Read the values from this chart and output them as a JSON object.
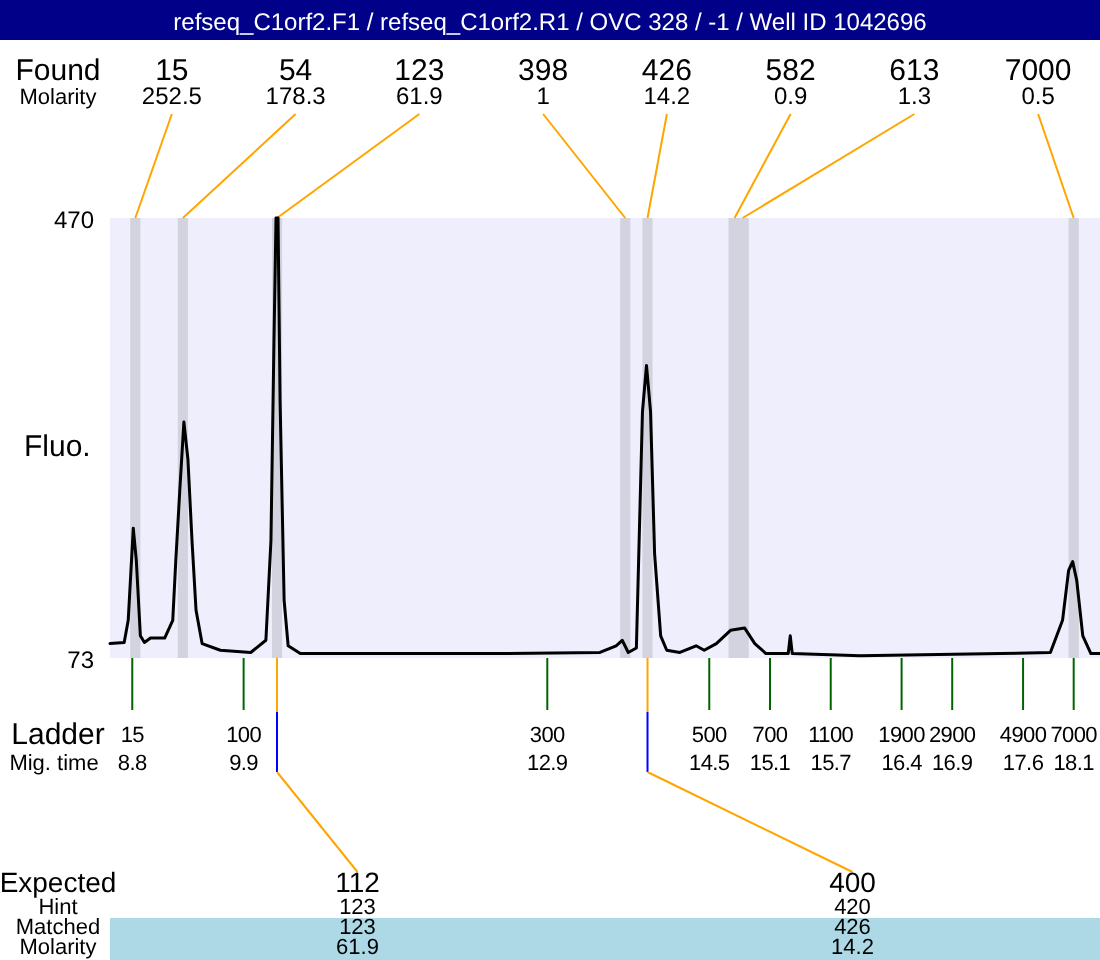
{
  "chart_data": {
    "type": "line",
    "title": "refseq_C1orf2.F1 / refseq_C1orf2.R1 / OVC 328 / -1 / Well ID 1042696",
    "ylabel": "Fluo.",
    "xlabel": "Mig. time",
    "xlim": [
      8.58,
      18.36
    ],
    "ylim": [
      73,
      470
    ],
    "yticks": [
      73,
      470
    ],
    "xticks": [
      8.8,
      9.9,
      12.9,
      14.5,
      15.1,
      15.7,
      16.4,
      16.9,
      17.6,
      18.1
    ],
    "series": [
      {
        "color": "#000000",
        "x": [
          8.58,
          8.72,
          8.76,
          8.81,
          8.84,
          8.88,
          8.92,
          8.98,
          9.12,
          9.2,
          9.23,
          9.27,
          9.31,
          9.35,
          9.39,
          9.43,
          9.49,
          9.67,
          9.97,
          10.12,
          10.17,
          10.2,
          10.22,
          10.24,
          10.26,
          10.3,
          10.34,
          10.46,
          11.45,
          12.44,
          13.42,
          13.58,
          13.64,
          13.7,
          13.78,
          13.84,
          13.88,
          13.92,
          13.96,
          14.02,
          14.08,
          14.21,
          14.37,
          14.45,
          14.57,
          14.71,
          14.85,
          14.95,
          15.06,
          15.28,
          15.3,
          15.32,
          15.99,
          17.38,
          17.87,
          17.99,
          18.05,
          18.09,
          18.13,
          18.19,
          18.27,
          18.36
        ],
        "values": [
          86,
          87,
          107,
          190,
          161,
          93,
          87,
          91,
          91,
          107,
          161,
          225,
          286,
          252,
          179,
          116,
          86,
          80,
          78,
          89,
          179,
          360,
          470,
          470,
          306,
          125,
          84,
          77,
          77,
          77,
          78,
          84,
          89,
          78,
          82,
          295,
          337,
          295,
          167,
          93,
          80,
          78,
          84,
          80,
          86,
          98,
          100,
          86,
          77,
          77,
          93,
          77,
          75,
          77,
          78,
          107,
          152,
          160,
          143,
          93,
          77,
          77
        ]
      }
    ],
    "bands": [
      {
        "axis": "x",
        "from": 8.78,
        "to": 8.88,
        "label": "15",
        "color": "#d3d3df"
      },
      {
        "axis": "x",
        "from": 9.25,
        "to": 9.35,
        "label": "54",
        "color": "#d3d3df"
      },
      {
        "axis": "x",
        "from": 10.18,
        "to": 10.28,
        "label": "123",
        "color": "#d3d3df"
      },
      {
        "axis": "x",
        "from": 13.62,
        "to": 13.72,
        "label": "398",
        "color": "#d3d3df"
      },
      {
        "axis": "x",
        "from": 13.84,
        "to": 13.94,
        "label": "426",
        "color": "#d3d3df"
      },
      {
        "axis": "x",
        "from": 14.69,
        "to": 14.81,
        "label": "582",
        "color": "#d3d3df"
      },
      {
        "axis": "x",
        "from": 14.77,
        "to": 14.89,
        "label": "613",
        "color": "#d3d3df"
      },
      {
        "axis": "x",
        "from": 18.05,
        "to": 18.15,
        "label": "7000",
        "color": "#d3d3df"
      }
    ],
    "annotations": [
      "Found",
      "Molarity",
      "Ladder",
      "Expected",
      "Hint",
      "Matched",
      "Molarity",
      {
        "text": "252.5",
        "x": 8.83,
        "y": 470
      },
      {
        "text": "178.3",
        "x": 9.3,
        "y": 470
      },
      {
        "text": "61.9",
        "x": 10.23,
        "y": 470
      },
      {
        "text": "1",
        "x": 13.67,
        "y": 470
      },
      {
        "text": "14.2",
        "x": 13.89,
        "y": 470
      },
      {
        "text": "0.9",
        "x": 14.75,
        "y": 470
      },
      {
        "text": "1.3",
        "x": 14.83,
        "y": 470
      },
      {
        "text": "0.5",
        "x": 18.1,
        "y": 470
      },
      {
        "text": "15",
        "x": 8.8,
        "y": 73
      },
      {
        "text": "100",
        "x": 9.9,
        "y": 73
      },
      {
        "text": "300",
        "x": 12.9,
        "y": 73
      },
      {
        "text": "500",
        "x": 14.5,
        "y": 73
      },
      {
        "text": "700",
        "x": 15.1,
        "y": 73
      },
      {
        "text": "1100",
        "x": 15.7,
        "y": 73
      },
      {
        "text": "1900",
        "x": 16.4,
        "y": 73
      },
      {
        "text": "2900",
        "x": 16.9,
        "y": 73
      },
      {
        "text": "4900",
        "x": 17.6,
        "y": 73
      },
      {
        "text": "7000",
        "x": 18.1,
        "y": 73
      },
      {
        "text": "112",
        "x": 10.23
      },
      "123",
      "123",
      "61.9",
      {
        "text": "400",
        "x": 13.89
      },
      "420",
      "426",
      "14.2"
    ]
  }
}
